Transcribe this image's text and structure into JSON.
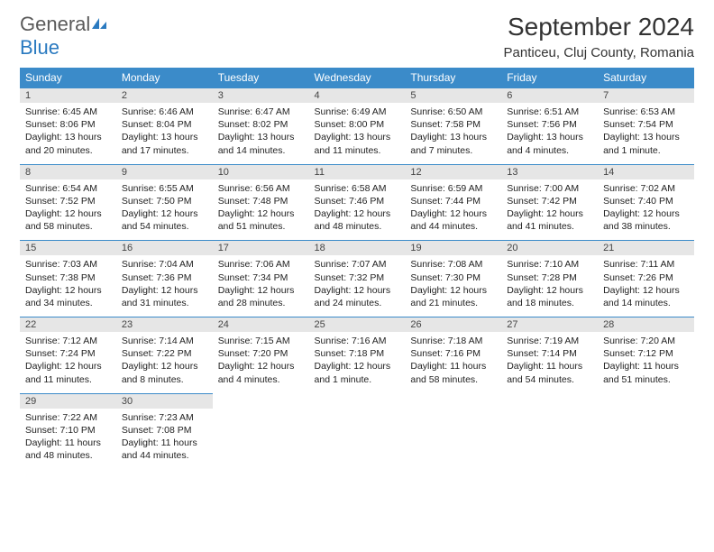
{
  "logo": {
    "general": "General",
    "blue": "Blue"
  },
  "title": "September 2024",
  "location": "Panticeu, Cluj County, Romania",
  "colors": {
    "header_bg": "#3b8bc9",
    "header_fg": "#ffffff",
    "daynum_bg": "#e6e6e6",
    "border": "#3b8bc9",
    "logo_blue": "#2a7ac0",
    "logo_gray": "#5a5a5a"
  },
  "weekdays": [
    "Sunday",
    "Monday",
    "Tuesday",
    "Wednesday",
    "Thursday",
    "Friday",
    "Saturday"
  ],
  "weeks": [
    [
      {
        "day": "1",
        "sunrise": "Sunrise: 6:45 AM",
        "sunset": "Sunset: 8:06 PM",
        "daylight": "Daylight: 13 hours and 20 minutes."
      },
      {
        "day": "2",
        "sunrise": "Sunrise: 6:46 AM",
        "sunset": "Sunset: 8:04 PM",
        "daylight": "Daylight: 13 hours and 17 minutes."
      },
      {
        "day": "3",
        "sunrise": "Sunrise: 6:47 AM",
        "sunset": "Sunset: 8:02 PM",
        "daylight": "Daylight: 13 hours and 14 minutes."
      },
      {
        "day": "4",
        "sunrise": "Sunrise: 6:49 AM",
        "sunset": "Sunset: 8:00 PM",
        "daylight": "Daylight: 13 hours and 11 minutes."
      },
      {
        "day": "5",
        "sunrise": "Sunrise: 6:50 AM",
        "sunset": "Sunset: 7:58 PM",
        "daylight": "Daylight: 13 hours and 7 minutes."
      },
      {
        "day": "6",
        "sunrise": "Sunrise: 6:51 AM",
        "sunset": "Sunset: 7:56 PM",
        "daylight": "Daylight: 13 hours and 4 minutes."
      },
      {
        "day": "7",
        "sunrise": "Sunrise: 6:53 AM",
        "sunset": "Sunset: 7:54 PM",
        "daylight": "Daylight: 13 hours and 1 minute."
      }
    ],
    [
      {
        "day": "8",
        "sunrise": "Sunrise: 6:54 AM",
        "sunset": "Sunset: 7:52 PM",
        "daylight": "Daylight: 12 hours and 58 minutes."
      },
      {
        "day": "9",
        "sunrise": "Sunrise: 6:55 AM",
        "sunset": "Sunset: 7:50 PM",
        "daylight": "Daylight: 12 hours and 54 minutes."
      },
      {
        "day": "10",
        "sunrise": "Sunrise: 6:56 AM",
        "sunset": "Sunset: 7:48 PM",
        "daylight": "Daylight: 12 hours and 51 minutes."
      },
      {
        "day": "11",
        "sunrise": "Sunrise: 6:58 AM",
        "sunset": "Sunset: 7:46 PM",
        "daylight": "Daylight: 12 hours and 48 minutes."
      },
      {
        "day": "12",
        "sunrise": "Sunrise: 6:59 AM",
        "sunset": "Sunset: 7:44 PM",
        "daylight": "Daylight: 12 hours and 44 minutes."
      },
      {
        "day": "13",
        "sunrise": "Sunrise: 7:00 AM",
        "sunset": "Sunset: 7:42 PM",
        "daylight": "Daylight: 12 hours and 41 minutes."
      },
      {
        "day": "14",
        "sunrise": "Sunrise: 7:02 AM",
        "sunset": "Sunset: 7:40 PM",
        "daylight": "Daylight: 12 hours and 38 minutes."
      }
    ],
    [
      {
        "day": "15",
        "sunrise": "Sunrise: 7:03 AM",
        "sunset": "Sunset: 7:38 PM",
        "daylight": "Daylight: 12 hours and 34 minutes."
      },
      {
        "day": "16",
        "sunrise": "Sunrise: 7:04 AM",
        "sunset": "Sunset: 7:36 PM",
        "daylight": "Daylight: 12 hours and 31 minutes."
      },
      {
        "day": "17",
        "sunrise": "Sunrise: 7:06 AM",
        "sunset": "Sunset: 7:34 PM",
        "daylight": "Daylight: 12 hours and 28 minutes."
      },
      {
        "day": "18",
        "sunrise": "Sunrise: 7:07 AM",
        "sunset": "Sunset: 7:32 PM",
        "daylight": "Daylight: 12 hours and 24 minutes."
      },
      {
        "day": "19",
        "sunrise": "Sunrise: 7:08 AM",
        "sunset": "Sunset: 7:30 PM",
        "daylight": "Daylight: 12 hours and 21 minutes."
      },
      {
        "day": "20",
        "sunrise": "Sunrise: 7:10 AM",
        "sunset": "Sunset: 7:28 PM",
        "daylight": "Daylight: 12 hours and 18 minutes."
      },
      {
        "day": "21",
        "sunrise": "Sunrise: 7:11 AM",
        "sunset": "Sunset: 7:26 PM",
        "daylight": "Daylight: 12 hours and 14 minutes."
      }
    ],
    [
      {
        "day": "22",
        "sunrise": "Sunrise: 7:12 AM",
        "sunset": "Sunset: 7:24 PM",
        "daylight": "Daylight: 12 hours and 11 minutes."
      },
      {
        "day": "23",
        "sunrise": "Sunrise: 7:14 AM",
        "sunset": "Sunset: 7:22 PM",
        "daylight": "Daylight: 12 hours and 8 minutes."
      },
      {
        "day": "24",
        "sunrise": "Sunrise: 7:15 AM",
        "sunset": "Sunset: 7:20 PM",
        "daylight": "Daylight: 12 hours and 4 minutes."
      },
      {
        "day": "25",
        "sunrise": "Sunrise: 7:16 AM",
        "sunset": "Sunset: 7:18 PM",
        "daylight": "Daylight: 12 hours and 1 minute."
      },
      {
        "day": "26",
        "sunrise": "Sunrise: 7:18 AM",
        "sunset": "Sunset: 7:16 PM",
        "daylight": "Daylight: 11 hours and 58 minutes."
      },
      {
        "day": "27",
        "sunrise": "Sunrise: 7:19 AM",
        "sunset": "Sunset: 7:14 PM",
        "daylight": "Daylight: 11 hours and 54 minutes."
      },
      {
        "day": "28",
        "sunrise": "Sunrise: 7:20 AM",
        "sunset": "Sunset: 7:12 PM",
        "daylight": "Daylight: 11 hours and 51 minutes."
      }
    ],
    [
      {
        "day": "29",
        "sunrise": "Sunrise: 7:22 AM",
        "sunset": "Sunset: 7:10 PM",
        "daylight": "Daylight: 11 hours and 48 minutes."
      },
      {
        "day": "30",
        "sunrise": "Sunrise: 7:23 AM",
        "sunset": "Sunset: 7:08 PM",
        "daylight": "Daylight: 11 hours and 44 minutes."
      },
      null,
      null,
      null,
      null,
      null
    ]
  ]
}
